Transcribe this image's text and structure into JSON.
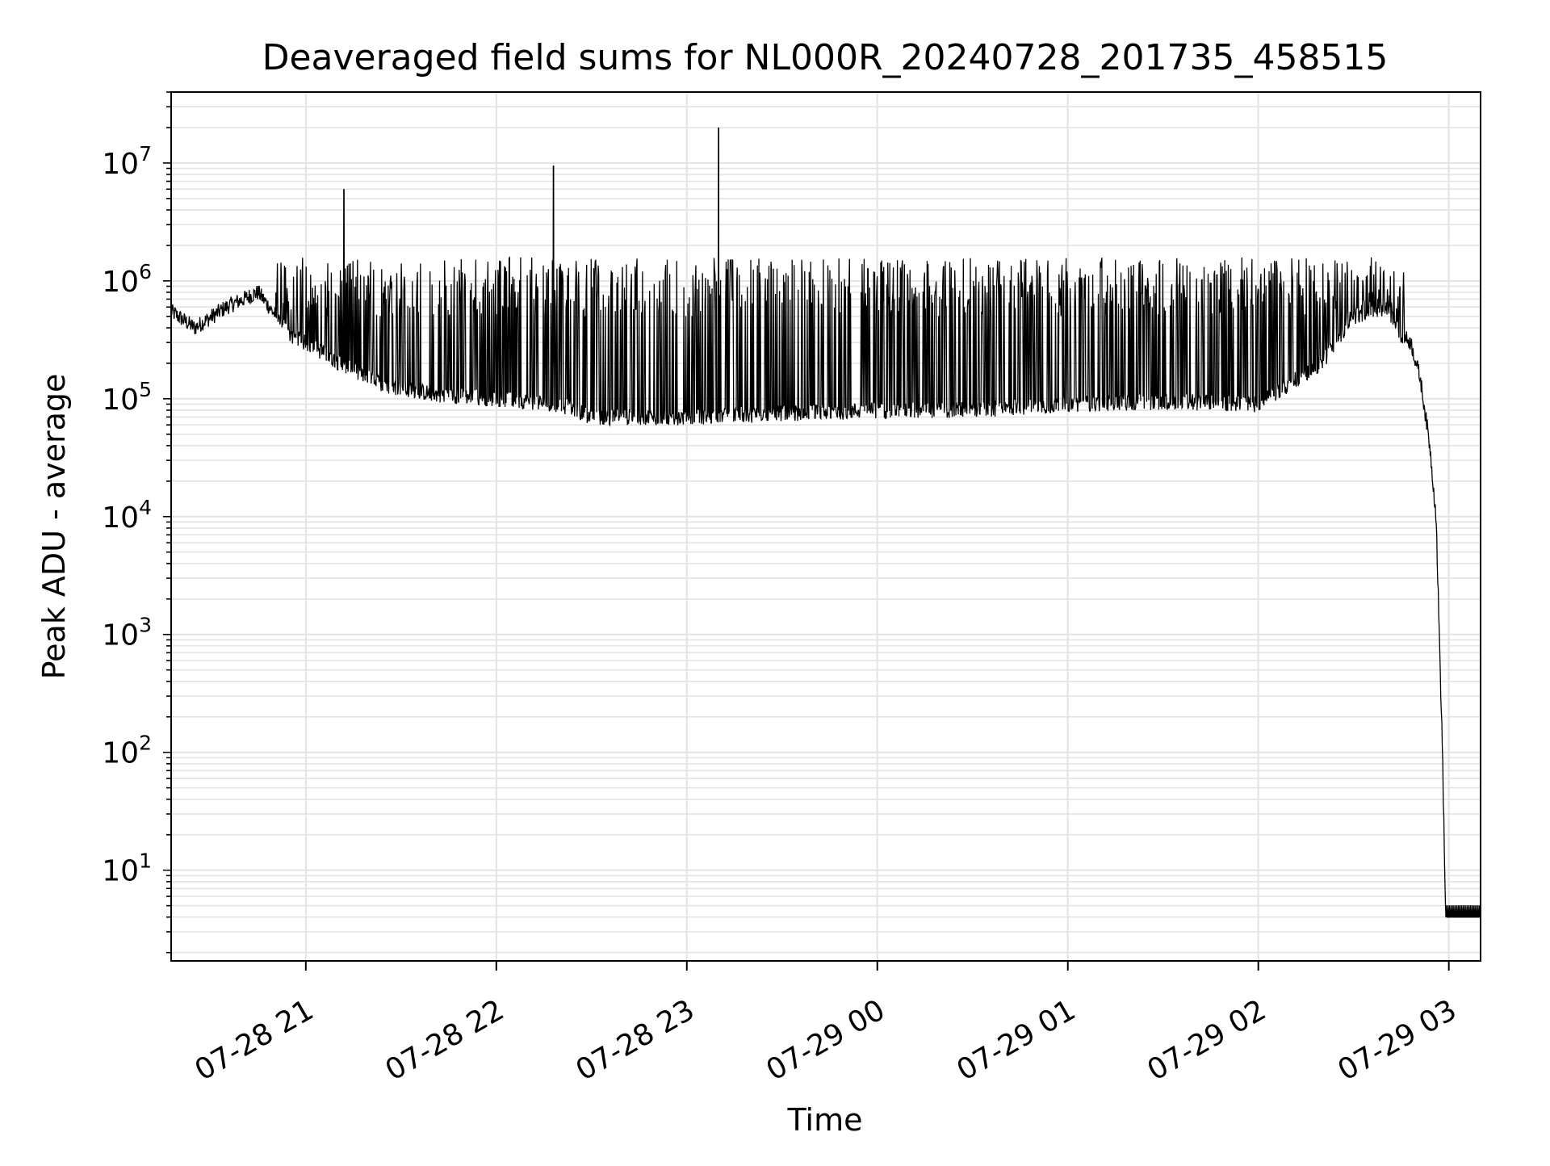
{
  "chart_data": {
    "type": "line",
    "title": "Deaveraged field sums for NL000R_20240728_201735_458515",
    "xlabel": "Time",
    "ylabel": "Peak ADU - average",
    "y_scale": "log",
    "grid": true,
    "legend": "none",
    "line_color": "#000000",
    "grid_color": "#e3e3e3",
    "xlim": [
      "2024-07-28 20:17:35",
      "2024-07-29 03:10:00"
    ],
    "ylim": [
      1.7,
      40000000
    ],
    "x_ticks": [
      {
        "time": "2024-07-28 21:00",
        "label": "07-28 21"
      },
      {
        "time": "2024-07-28 22:00",
        "label": "07-28 22"
      },
      {
        "time": "2024-07-28 23:00",
        "label": "07-28 23"
      },
      {
        "time": "2024-07-29 00:00",
        "label": "07-29 00"
      },
      {
        "time": "2024-07-29 01:00",
        "label": "07-29 01"
      },
      {
        "time": "2024-07-29 02:00",
        "label": "07-29 02"
      },
      {
        "time": "2024-07-29 03:00",
        "label": "07-29 03"
      }
    ],
    "y_ticks": [
      {
        "value": 10,
        "base": "10",
        "exponent": "1"
      },
      {
        "value": 100,
        "base": "10",
        "exponent": "2"
      },
      {
        "value": 1000,
        "base": "10",
        "exponent": "3"
      },
      {
        "value": 10000,
        "base": "10",
        "exponent": "4"
      },
      {
        "value": 100000,
        "base": "10",
        "exponent": "5"
      },
      {
        "value": 1000000,
        "base": "10",
        "exponent": "6"
      },
      {
        "value": 10000000,
        "base": "10",
        "exponent": "7"
      }
    ],
    "series": [
      {
        "x": [
          "2024-07-28 20:17:35",
          "2024-07-28 20:25",
          "2024-07-28 20:35",
          "2024-07-28 20:45",
          "2024-07-28 20:55",
          "2024-07-28 21:05",
          "2024-07-28 21:15",
          "2024-07-28 21:25",
          "2024-07-28 21:40",
          "2024-07-28 22:00",
          "2024-07-28 22:20",
          "2024-07-28 22:30",
          "2024-07-28 23:00",
          "2024-07-28 23:30",
          "2024-07-29 00:00",
          "2024-07-29 00:30",
          "2024-07-29 01:00",
          "2024-07-29 01:30",
          "2024-07-29 02:00",
          "2024-07-29 02:20",
          "2024-07-29 02:30",
          "2024-07-29 02:40",
          "2024-07-29 02:45",
          "2024-07-29 02:48",
          "2024-07-29 02:51",
          "2024-07-29 02:54",
          "2024-07-29 02:56",
          "2024-07-29 02:57",
          "2024-07-29 02:58",
          "2024-07-29 02:59",
          "2024-07-29 03:10"
        ],
        "y": [
          550000,
          400000,
          600000,
          800000,
          350000,
          250000,
          170000,
          130000,
          110000,
          100000,
          90000,
          70000,
          70000,
          75000,
          80000,
          80000,
          90000,
          95000,
          90000,
          200000,
          500000,
          600000,
          350000,
          300000,
          150000,
          40000,
          10000,
          1000,
          100,
          4,
          4
        ]
      }
    ],
    "peaks": [
      {
        "x": "2024-07-28 21:12",
        "y": 6000000
      },
      {
        "x": "2024-07-28 22:18",
        "y": 9500000
      },
      {
        "x": "2024-07-28 23:10",
        "y": 20000000
      }
    ]
  }
}
